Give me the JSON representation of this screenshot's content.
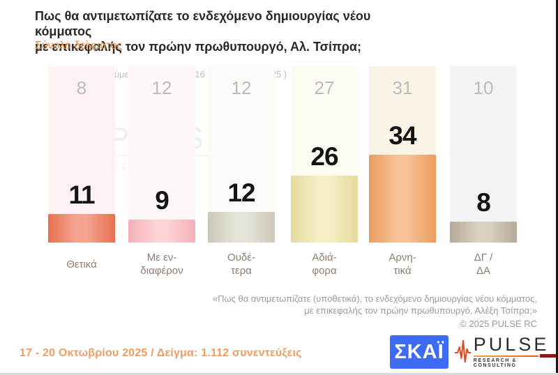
{
  "title": {
    "lines": [
      "Πως θα αντιμετωπίζατε το ενδεχόμενο δημιουργίας νέου κόμματος",
      "με επικεφαλής τον πρώην πρωθυπουργό, Αλ. Τσίπρα;"
    ],
    "subtitle": "Σύνολο δείγματος"
  },
  "chart_data": {
    "type": "bar",
    "title": "Πως θα αντιμετωπίζατε το ενδεχόμενο δημιουργίας νέου κόμματος με επικεφαλής τον πρώην πρωθυπουργό, Αλ. Τσίπρα;",
    "subtitle": "Σύνολο δείγματος",
    "categories": [
      "Θετικά",
      "Με εν-\nδιαφέρον",
      "Ουδέ-\nτερα",
      "Αδιά-\nφορα",
      "Αρνη-\nτικά",
      "ΔΓ /\nΔΑ"
    ],
    "series": [
      {
        "name": "17 - 20 Οκτωβρίου 2025",
        "values": [
          11,
          9,
          12,
          26,
          34,
          8
        ]
      },
      {
        "name": "Προηγούμενη έρευνα ( 14 - 16 Σεπτεμβρίου 2025 )",
        "values": [
          8,
          12,
          12,
          27,
          31,
          10
        ]
      }
    ],
    "value_unit": "percent",
    "grid": false,
    "bar_colors": [
      [
        "#e86f50",
        "#f5a490"
      ],
      [
        "#f5afb8",
        "#fcd3d7"
      ],
      [
        "#cbc8b8",
        "#e6e4da"
      ],
      [
        "#e5da9e",
        "#f5efc6"
      ],
      [
        "#ea9c5e",
        "#f7c296"
      ],
      [
        "#b5aa95",
        "#d9d1c1"
      ]
    ],
    "band_colors": [
      "#fdf2f1",
      "#fef7f7",
      "#fbfaf6",
      "#fdfaf1",
      "#faf4e7",
      "#f3f3f5"
    ]
  },
  "footnote": {
    "lines": [
      "«Πως θα αντιμετωπίζατε (υποθετικά), το ενδεχόμενο δημιουργίας νέου κόμματος,",
      "με επικεφαλής τον πρώην πρωθυπουργό, Αλέξη Τσίπρα;»"
    ],
    "copyright": "©  2025  PULSE RC"
  },
  "footer": {
    "date_sample": "17 - 20 Οκτωβρίου 2025  /  Δείγμα:  1.112 συνεντεύξεις",
    "skai_text": "ΣΚΑΪ",
    "pulse_name": "PULSE",
    "pulse_tagline": "RESEARCH & CONSULTING"
  },
  "watermark": {
    "name": "PULSE",
    "tagline": "RESEARCH & CONSULTING"
  },
  "colors": {
    "accent_orange": "#e48a3d",
    "footer_orange": "#ef9c63",
    "previous_gray": "#b7bdc3",
    "category_brown": "#8d7b70",
    "skai_blue": "#3d6bf3",
    "pulse_red": "#e2471c"
  }
}
